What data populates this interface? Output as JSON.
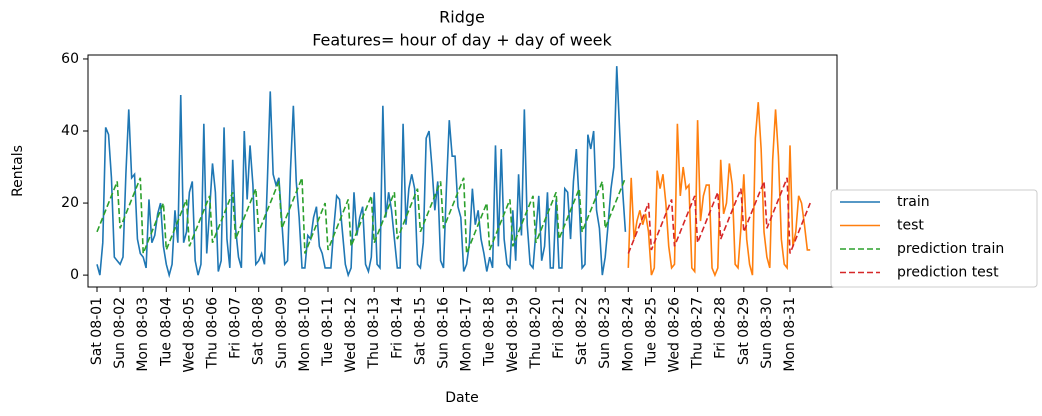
{
  "chart_data": {
    "type": "line",
    "title": "Ridge",
    "subtitle": "Features= hour of day + day of week",
    "x_label": "Date",
    "y_label": "Rentals",
    "ylim": [
      -3.3,
      61.1
    ],
    "yticks": [
      0,
      20,
      40,
      60
    ],
    "legend": "outside right",
    "categories": [
      "Sat 08-01",
      null,
      null,
      null,
      null,
      null,
      null,
      null,
      "Sun 08-02",
      null,
      null,
      null,
      null,
      null,
      null,
      null,
      "Mon 08-03",
      null,
      null,
      null,
      null,
      null,
      null,
      null,
      "Tue 08-04",
      null,
      null,
      null,
      null,
      null,
      null,
      null,
      "Wed 08-05",
      null,
      null,
      null,
      null,
      null,
      null,
      null,
      "Thu 08-06",
      null,
      null,
      null,
      null,
      null,
      null,
      null,
      "Fri 08-07",
      null,
      null,
      null,
      null,
      null,
      null,
      null,
      "Sat 08-08",
      null,
      null,
      null,
      null,
      null,
      null,
      null,
      "Sun 08-09",
      null,
      null,
      null,
      null,
      null,
      null,
      null,
      "Mon 08-10",
      null,
      null,
      null,
      null,
      null,
      null,
      null,
      "Tue 08-11",
      null,
      null,
      null,
      null,
      null,
      null,
      null,
      "Wed 08-12",
      null,
      null,
      null,
      null,
      null,
      null,
      null,
      "Thu 08-13",
      null,
      null,
      null,
      null,
      null,
      null,
      null,
      "Fri 08-14",
      null,
      null,
      null,
      null,
      null,
      null,
      null,
      "Sat 08-15",
      null,
      null,
      null,
      null,
      null,
      null,
      null,
      "Sun 08-16",
      null,
      null,
      null,
      null,
      null,
      null,
      null,
      "Mon 08-17",
      null,
      null,
      null,
      null,
      null,
      null,
      null,
      "Tue 08-18",
      null,
      null,
      null,
      null,
      null,
      null,
      null,
      "Wed 08-19",
      null,
      null,
      null,
      null,
      null,
      null,
      null,
      "Thu 08-20",
      null,
      null,
      null,
      null,
      null,
      null,
      null,
      "Fri 08-21",
      null,
      null,
      null,
      null,
      null,
      null,
      null,
      "Sat 08-22",
      null,
      null,
      null,
      null,
      null,
      null,
      null,
      "Sun 08-23",
      null,
      null,
      null,
      null,
      null,
      null,
      null,
      "Mon 08-24",
      null,
      null,
      null,
      null,
      null,
      null,
      null,
      "Tue 08-25",
      null,
      null,
      null,
      null,
      null,
      null,
      null,
      "Wed 08-26",
      null,
      null,
      null,
      null,
      null,
      null,
      null,
      "Thu 08-27",
      null,
      null,
      null,
      null,
      null,
      null,
      null,
      "Fri 08-28",
      null,
      null,
      null,
      null,
      null,
      null,
      null,
      "Sat 08-29",
      null,
      null,
      null,
      null,
      null,
      null,
      null,
      "Sun 08-30",
      null,
      null,
      null,
      null,
      null,
      null,
      null,
      "Mon 08-31",
      null,
      null,
      null,
      null,
      null,
      null,
      null
    ],
    "series": [
      {
        "name": "train",
        "color": "#1f77b4",
        "linestyle": "solid",
        "values": [
          3,
          0,
          9,
          41,
          39,
          27,
          5,
          4,
          3,
          5,
          28,
          46,
          27,
          28,
          10,
          6,
          5,
          2,
          21,
          9,
          11,
          17,
          20,
          8,
          3,
          0,
          3,
          18,
          9,
          50,
          9,
          12,
          23,
          26,
          4,
          0,
          3,
          42,
          6,
          18,
          31,
          23,
          1,
          4,
          41,
          10,
          2,
          32,
          13,
          5,
          2,
          40,
          21,
          36,
          25,
          3,
          4,
          6,
          3,
          26,
          51,
          28,
          25,
          27,
          15,
          3,
          4,
          29,
          47,
          26,
          16,
          2,
          2,
          11,
          10,
          16,
          19,
          8,
          6,
          2,
          2,
          2,
          13,
          22,
          21,
          12,
          3,
          0,
          2,
          23,
          11,
          16,
          19,
          3,
          1,
          5,
          23,
          3,
          2,
          47,
          16,
          23,
          18,
          10,
          2,
          2,
          42,
          14,
          24,
          28,
          24,
          3,
          2,
          9,
          38,
          40,
          30,
          18,
          26,
          4,
          2,
          24,
          43,
          33,
          33,
          19,
          16,
          1,
          3,
          9,
          24,
          14,
          18,
          10,
          6,
          1,
          5,
          2,
          36,
          8,
          35,
          10,
          3,
          2,
          18,
          4,
          28,
          11,
          46,
          14,
          3,
          2,
          12,
          22,
          4,
          8,
          23,
          2,
          2,
          21,
          2,
          2,
          24,
          23,
          10,
          26,
          35,
          20,
          2,
          3,
          39,
          35,
          40,
          18,
          13,
          0,
          5,
          14,
          24,
          30,
          58,
          40,
          24,
          12,
          null,
          null,
          null,
          null,
          null,
          null,
          null,
          null,
          null,
          null,
          null,
          null,
          null,
          null,
          null,
          null,
          null,
          null,
          null,
          null,
          null,
          null,
          null,
          null,
          null,
          null,
          null,
          null,
          null,
          null,
          null,
          null,
          null,
          null,
          null,
          null,
          null,
          null,
          null,
          null,
          null,
          null,
          null,
          null,
          null,
          null,
          null,
          null,
          null,
          null,
          null,
          null,
          null,
          null,
          null,
          null,
          null,
          null,
          null,
          null,
          null,
          null,
          null,
          null
        ]
      },
      {
        "name": "test",
        "color": "#ff7f0e",
        "linestyle": "solid",
        "values": [
          null,
          null,
          null,
          null,
          null,
          null,
          null,
          null,
          null,
          null,
          null,
          null,
          null,
          null,
          null,
          null,
          null,
          null,
          null,
          null,
          null,
          null,
          null,
          null,
          null,
          null,
          null,
          null,
          null,
          null,
          null,
          null,
          null,
          null,
          null,
          null,
          null,
          null,
          null,
          null,
          null,
          null,
          null,
          null,
          null,
          null,
          null,
          null,
          null,
          null,
          null,
          null,
          null,
          null,
          null,
          null,
          null,
          null,
          null,
          null,
          null,
          null,
          null,
          null,
          null,
          null,
          null,
          null,
          null,
          null,
          null,
          null,
          null,
          null,
          null,
          null,
          null,
          null,
          null,
          null,
          null,
          null,
          null,
          null,
          null,
          null,
          null,
          null,
          null,
          null,
          null,
          null,
          null,
          null,
          null,
          null,
          null,
          null,
          null,
          null,
          null,
          null,
          null,
          null,
          null,
          null,
          null,
          null,
          null,
          null,
          null,
          null,
          null,
          null,
          null,
          null,
          null,
          null,
          null,
          null,
          null,
          null,
          null,
          null,
          null,
          null,
          null,
          null,
          null,
          null,
          null,
          null,
          null,
          null,
          null,
          null,
          null,
          null,
          null,
          null,
          null,
          null,
          null,
          null,
          null,
          null,
          null,
          null,
          null,
          null,
          null,
          null,
          null,
          null,
          null,
          null,
          null,
          null,
          null,
          null,
          null,
          null,
          null,
          null,
          null,
          null,
          null,
          null,
          null,
          null,
          null,
          null,
          null,
          null,
          null,
          null,
          null,
          null,
          null,
          null,
          null,
          null,
          null,
          null,
          2,
          27,
          10,
          15,
          18,
          14,
          17,
          12,
          0,
          2,
          29,
          24,
          28,
          20,
          8,
          2,
          3,
          42,
          22,
          30,
          24,
          25,
          2,
          1,
          43,
          15,
          22,
          25,
          25,
          2,
          0,
          2,
          32,
          17,
          20,
          31,
          25,
          3,
          2,
          13,
          28,
          10,
          3,
          0,
          38,
          48,
          35,
          12,
          5,
          2,
          32,
          46,
          33,
          10,
          3,
          2,
          36,
          8,
          12,
          22,
          20,
          14,
          7,
          7
        ]
      },
      {
        "name": "prediction train",
        "color": "#2ca02c",
        "linestyle": "dashed",
        "values": [
          12,
          14,
          16,
          18,
          20,
          22,
          24,
          26,
          13,
          15,
          17,
          19,
          21,
          23,
          25,
          27,
          6,
          8,
          10,
          12,
          14,
          16,
          18,
          20,
          7,
          9,
          11,
          13,
          15,
          17,
          19,
          21,
          8,
          10,
          12,
          14,
          16,
          18,
          20,
          22,
          9,
          11,
          13,
          15,
          17,
          19,
          21,
          23,
          10,
          12,
          14,
          16,
          18,
          20,
          22,
          24,
          12,
          14,
          16,
          18,
          20,
          22,
          24,
          26,
          13,
          15,
          17,
          19,
          21,
          23,
          25,
          27,
          6,
          8,
          10,
          12,
          14,
          16,
          18,
          20,
          7,
          9,
          11,
          13,
          15,
          17,
          19,
          21,
          8,
          10,
          12,
          14,
          16,
          18,
          20,
          22,
          9,
          11,
          13,
          15,
          17,
          19,
          21,
          23,
          10,
          12,
          14,
          16,
          18,
          20,
          22,
          24,
          12,
          14,
          16,
          18,
          20,
          22,
          24,
          26,
          13,
          15,
          17,
          19,
          21,
          23,
          25,
          27,
          6,
          8,
          10,
          12,
          14,
          16,
          18,
          20,
          7,
          9,
          11,
          13,
          15,
          17,
          19,
          21,
          8,
          10,
          12,
          14,
          16,
          18,
          20,
          22,
          9,
          11,
          13,
          15,
          17,
          19,
          21,
          23,
          10,
          12,
          14,
          16,
          18,
          20,
          22,
          24,
          12,
          14,
          16,
          18,
          20,
          22,
          24,
          26,
          13,
          15,
          17,
          19,
          21,
          23,
          25,
          27,
          null,
          null,
          null,
          null,
          null,
          null,
          null,
          null,
          null,
          null,
          null,
          null,
          null,
          null,
          null,
          null,
          null,
          null,
          null,
          null,
          null,
          null,
          null,
          null,
          null,
          null,
          null,
          null,
          null,
          null,
          null,
          null,
          null,
          null,
          null,
          null,
          null,
          null,
          null,
          null,
          null,
          null,
          null,
          null,
          null,
          null,
          null,
          null,
          null,
          null,
          null,
          null,
          null,
          null,
          null,
          null,
          null,
          null,
          null,
          null,
          null,
          null,
          null,
          null
        ]
      },
      {
        "name": "prediction test",
        "color": "#d62728",
        "linestyle": "dashed",
        "values": [
          null,
          null,
          null,
          null,
          null,
          null,
          null,
          null,
          null,
          null,
          null,
          null,
          null,
          null,
          null,
          null,
          null,
          null,
          null,
          null,
          null,
          null,
          null,
          null,
          null,
          null,
          null,
          null,
          null,
          null,
          null,
          null,
          null,
          null,
          null,
          null,
          null,
          null,
          null,
          null,
          null,
          null,
          null,
          null,
          null,
          null,
          null,
          null,
          null,
          null,
          null,
          null,
          null,
          null,
          null,
          null,
          null,
          null,
          null,
          null,
          null,
          null,
          null,
          null,
          null,
          null,
          null,
          null,
          null,
          null,
          null,
          null,
          null,
          null,
          null,
          null,
          null,
          null,
          null,
          null,
          null,
          null,
          null,
          null,
          null,
          null,
          null,
          null,
          null,
          null,
          null,
          null,
          null,
          null,
          null,
          null,
          null,
          null,
          null,
          null,
          null,
          null,
          null,
          null,
          null,
          null,
          null,
          null,
          null,
          null,
          null,
          null,
          null,
          null,
          null,
          null,
          null,
          null,
          null,
          null,
          null,
          null,
          null,
          null,
          null,
          null,
          null,
          null,
          null,
          null,
          null,
          null,
          null,
          null,
          null,
          null,
          null,
          null,
          null,
          null,
          null,
          null,
          null,
          null,
          null,
          null,
          null,
          null,
          null,
          null,
          null,
          null,
          null,
          null,
          null,
          null,
          null,
          null,
          null,
          null,
          null,
          null,
          null,
          null,
          null,
          null,
          null,
          null,
          null,
          null,
          null,
          null,
          null,
          null,
          null,
          null,
          null,
          null,
          null,
          null,
          null,
          null,
          null,
          null,
          6,
          8,
          10,
          12,
          14,
          16,
          18,
          20,
          7,
          9,
          11,
          13,
          15,
          17,
          19,
          21,
          8,
          10,
          12,
          14,
          16,
          18,
          20,
          22,
          9,
          11,
          13,
          15,
          17,
          19,
          21,
          23,
          10,
          12,
          14,
          16,
          18,
          20,
          22,
          24,
          12,
          14,
          16,
          18,
          20,
          22,
          24,
          26,
          13,
          15,
          17,
          19,
          21,
          23,
          25,
          27,
          6,
          8,
          10,
          12,
          14,
          16,
          18,
          20
        ]
      }
    ]
  }
}
